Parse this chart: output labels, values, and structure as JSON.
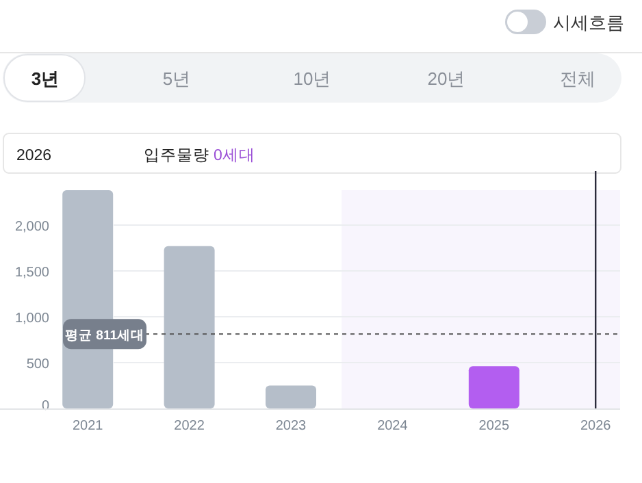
{
  "chart_data": {
    "type": "bar",
    "categories": [
      "2021",
      "2022",
      "2023",
      "2024",
      "2025",
      "2026"
    ],
    "values": [
      2380,
      1770,
      250,
      0,
      460,
      0
    ],
    "colors": [
      "#b5bec9",
      "#b5bec9",
      "#b5bec9",
      "#b5bec9",
      "#b35ef0",
      "#b5bec9"
    ],
    "ylim": [
      0,
      2380
    ],
    "yticks": [
      0,
      500,
      {
        "value": 1000,
        "label": "1,000"
      },
      {
        "value": 1500,
        "label": "1,500"
      },
      {
        "value": 2000,
        "label": "2,000"
      }
    ],
    "grid": "y",
    "ref_lines": [
      {
        "axis": "y",
        "value": 811,
        "label": "평균 811세대",
        "line_style": "dashed",
        "color": "#555555"
      },
      {
        "axis": "x",
        "value": "2026",
        "color": "#2a2a3a"
      }
    ],
    "bands": [
      {
        "axis": "x",
        "from": "2024",
        "to": "2026",
        "color": "#f8f5fd"
      }
    ],
    "annotations": [
      "시세흐름",
      "3년",
      "5년",
      "10년",
      "20년",
      "전체",
      "2026",
      "입주물량",
      "0세대"
    ]
  }
}
